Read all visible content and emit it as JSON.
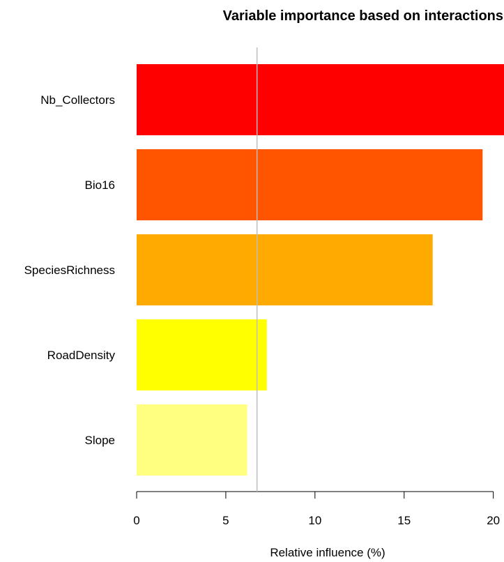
{
  "chart_data": {
    "type": "bar",
    "orientation": "horizontal",
    "title": "Variable importance based on interactions",
    "xlabel": "Relative influence (%)",
    "ylabel": "",
    "categories": [
      "Nb_Collectors",
      "Bio16",
      "SpeciesRichness",
      "RoadDensity",
      "Slope"
    ],
    "values": [
      20.6,
      19.4,
      16.6,
      7.3,
      6.2
    ],
    "colors": [
      "#FF0000",
      "#FF5500",
      "#FFAA00",
      "#FFFF00",
      "#FFFF80"
    ],
    "xlim": [
      0,
      20.6
    ],
    "x_ticks": [
      0,
      5,
      10,
      15,
      20
    ],
    "reference_line": {
      "x": 6.75,
      "color": "#BEBEBE"
    },
    "grid": false,
    "legend": "none"
  }
}
